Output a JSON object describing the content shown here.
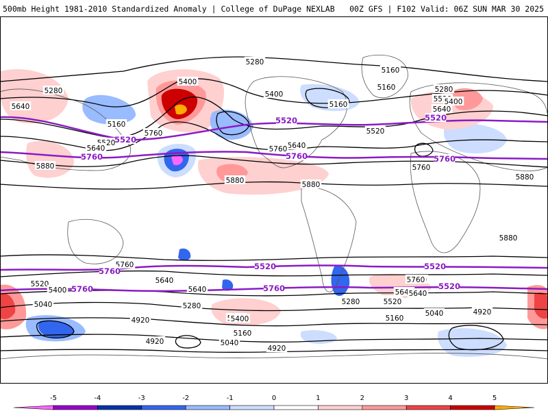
{
  "header": {
    "title": "500mb Height 1981-2010 Standardized Anomaly | College of DuPage NEXLAB",
    "run_info": "00Z GFS | F102 Valid: 06Z SUN MAR 30 2025"
  },
  "map": {
    "region": "Global",
    "projection": "cylindrical equidistant"
  },
  "contour_labels": {
    "black": [
      "5280",
      "5160",
      "5400",
      "5160",
      "5280",
      "5160",
      "5640",
      "5280",
      "5520",
      "5640",
      "5520",
      "5520",
      "5400",
      "5160",
      "5400",
      "5760",
      "5640",
      "5880",
      "5880",
      "5760",
      "5880",
      "5640",
      "5760",
      "5880",
      "5880",
      "5640",
      "5520",
      "5400",
      "5760",
      "5040",
      "5400",
      "5280",
      "5640",
      "5520",
      "5760",
      "5640",
      "4920",
      "4920",
      "5040",
      "5160",
      "4920",
      "5400",
      "5280",
      "5520",
      "5640",
      "5760",
      "5040",
      "4920",
      "5160"
    ],
    "purple": [
      "5520",
      "5520",
      "5520",
      "5760",
      "5760",
      "5760",
      "5760",
      "5520",
      "5520",
      "5760",
      "5760",
      "5520"
    ]
  },
  "colorbar": {
    "ticks": [
      "-5",
      "-4",
      "-3",
      "-2",
      "-1",
      "0",
      "1",
      "2",
      "3",
      "4",
      "5"
    ],
    "colors": [
      "#ff66ff",
      "#9900cc",
      "#0033aa",
      "#3366ee",
      "#99bbff",
      "#ccddff",
      "#ffffff",
      "#ffd0d0",
      "#ff9999",
      "#ee4444",
      "#cc0000",
      "#ffaa00"
    ]
  }
}
